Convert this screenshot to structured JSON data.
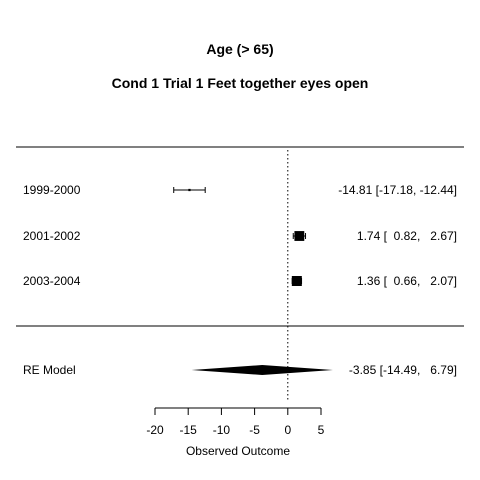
{
  "chart_data": {
    "type": "forest",
    "title": "Age (> 65)",
    "subtitle": "Cond 1 Trial 1 Feet together eyes open",
    "xlabel": "Observed Outcome",
    "xlim": [
      -20,
      5
    ],
    "xticks": [
      -20,
      -15,
      -10,
      -5,
      0,
      5
    ],
    "xtick_labels": [
      "-20",
      "-15",
      "-10",
      "-5",
      "0",
      "5"
    ],
    "reference_line": 0,
    "studies": [
      {
        "label": "1999-2000",
        "estimate": -14.81,
        "ci_low": -17.18,
        "ci_high": -12.44,
        "weight": 0.05,
        "ci_text": "-14.81 [-17.18, -12.44]"
      },
      {
        "label": "2001-2002",
        "estimate": 1.74,
        "ci_low": 0.82,
        "ci_high": 2.67,
        "weight": 0.97,
        "ci_text": "1.74 [  0.82,   2.67]"
      },
      {
        "label": "2003-2004",
        "estimate": 1.36,
        "ci_low": 0.66,
        "ci_high": 2.07,
        "weight": 1.0,
        "ci_text": "1.36 [  0.66,   2.07]"
      }
    ],
    "summary": {
      "label": "RE Model",
      "estimate": -3.85,
      "ci_low": -14.49,
      "ci_high": 6.79,
      "ci_text": "-3.85 [-14.49,   6.79]"
    }
  }
}
